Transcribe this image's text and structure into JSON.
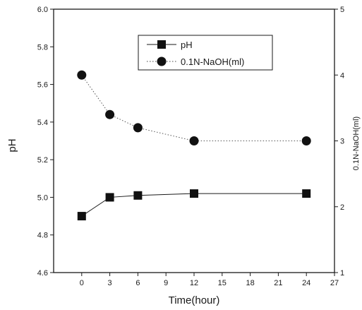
{
  "chart_data": {
    "type": "line",
    "title": "",
    "xlabel": "Time(hour)",
    "ylabel_left": "pH",
    "ylabel_right": "0.1N-NaOH(ml)",
    "x_ticks": [
      0,
      3,
      6,
      9,
      12,
      15,
      18,
      21,
      24,
      27
    ],
    "y_left_ticks": [
      "4.6",
      "4.8",
      "5.0",
      "5.2",
      "5.4",
      "5.6",
      "5.8",
      "6.0"
    ],
    "y_right_ticks": [
      "1",
      "2",
      "3",
      "4",
      "5"
    ],
    "xlim": [
      -3,
      27
    ],
    "ylim_left": [
      4.6,
      6.0
    ],
    "ylim_right": [
      1,
      5
    ],
    "grid": false,
    "legend_position": "top-center",
    "series": [
      {
        "name": "pH",
        "axis": "left",
        "marker": "square",
        "line_style": "solid",
        "x": [
          0,
          3,
          6,
          12,
          24
        ],
        "y": [
          4.9,
          5.0,
          5.01,
          5.02,
          5.02
        ]
      },
      {
        "name": "0.1N-NaOH(ml)",
        "axis": "right",
        "marker": "circle",
        "line_style": "dotted",
        "x": [
          0,
          3,
          6,
          12,
          24
        ],
        "y": [
          4.0,
          3.4,
          3.2,
          3.0,
          3.0
        ]
      }
    ]
  }
}
